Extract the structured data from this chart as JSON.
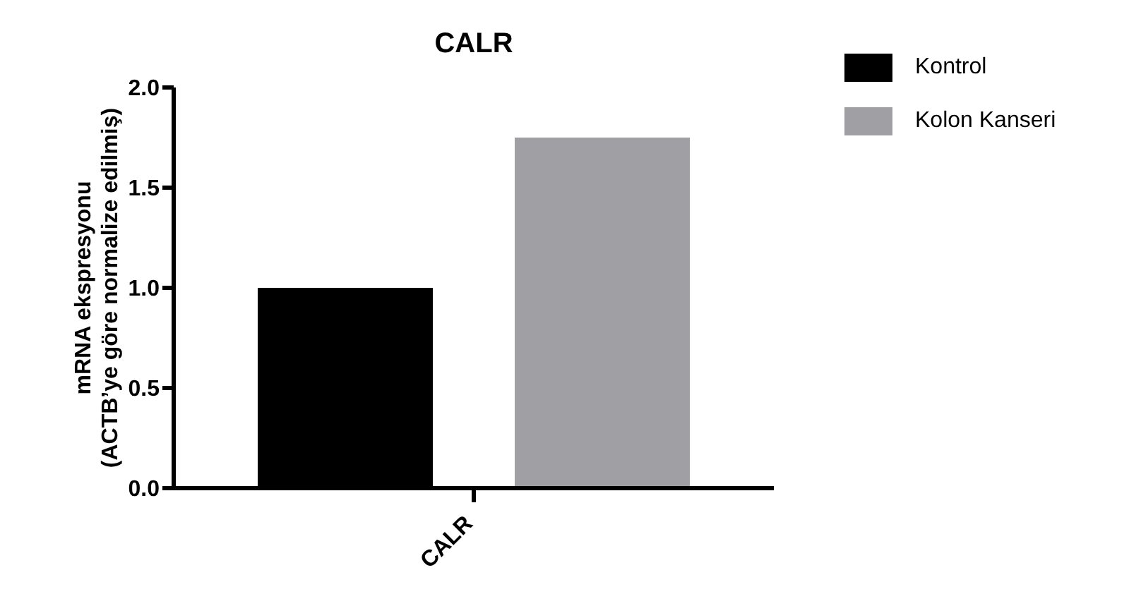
{
  "chart_data": {
    "type": "bar",
    "title": "CALR",
    "ylabel": "mRNA ekspresyonu\n(ACTB’ye göre normalize edilmiş)",
    "categories": [
      "CALR"
    ],
    "series": [
      {
        "name": "Kontrol",
        "color": "#000000",
        "values": [
          1.0
        ]
      },
      {
        "name": "Kolon Kanseri",
        "color": "#a0a0a4",
        "values": [
          1.75
        ]
      }
    ],
    "ylim": [
      0,
      2
    ],
    "yticks": [
      {
        "value": 0,
        "label": "0.0"
      },
      {
        "value": 0.5,
        "label": "0.5"
      },
      {
        "value": 1,
        "label": "1.0"
      },
      {
        "value": 1.5,
        "label": "1.5"
      },
      {
        "value": 2,
        "label": "2.0"
      }
    ],
    "grid": false,
    "legend": "top right"
  }
}
